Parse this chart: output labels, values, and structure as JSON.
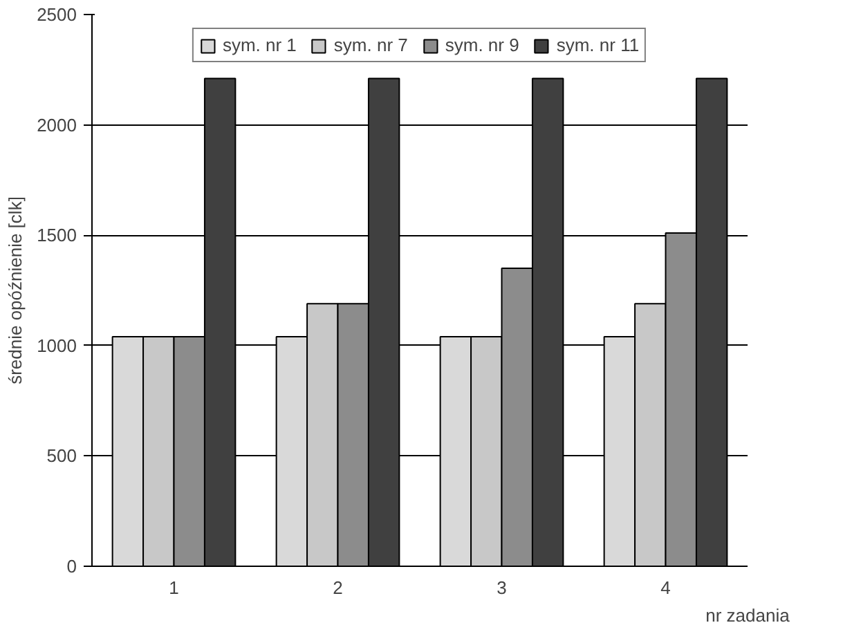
{
  "chart_data": {
    "type": "bar",
    "xlabel": "nr zadania",
    "ylabel": "średnie opóźnienie [clk]",
    "categories": [
      "1",
      "2",
      "3",
      "4"
    ],
    "series": [
      {
        "name": "sym. nr 1",
        "color": "#d9d9d9",
        "values": [
          1040,
          1040,
          1040,
          1040
        ]
      },
      {
        "name": "sym. nr 7",
        "color": "#c8c8c8",
        "values": [
          1040,
          1190,
          1040,
          1190
        ]
      },
      {
        "name": "sym. nr 9",
        "color": "#8c8c8c",
        "values": [
          1040,
          1190,
          1350,
          1510
        ]
      },
      {
        "name": "sym. nr 11",
        "color": "#404040",
        "values": [
          2210,
          2210,
          2210,
          2210
        ]
      }
    ],
    "ylim": [
      0,
      2500
    ],
    "yticks": [
      0,
      500,
      1000,
      1500,
      2000,
      2500
    ],
    "grid": "y",
    "legend": "top"
  }
}
